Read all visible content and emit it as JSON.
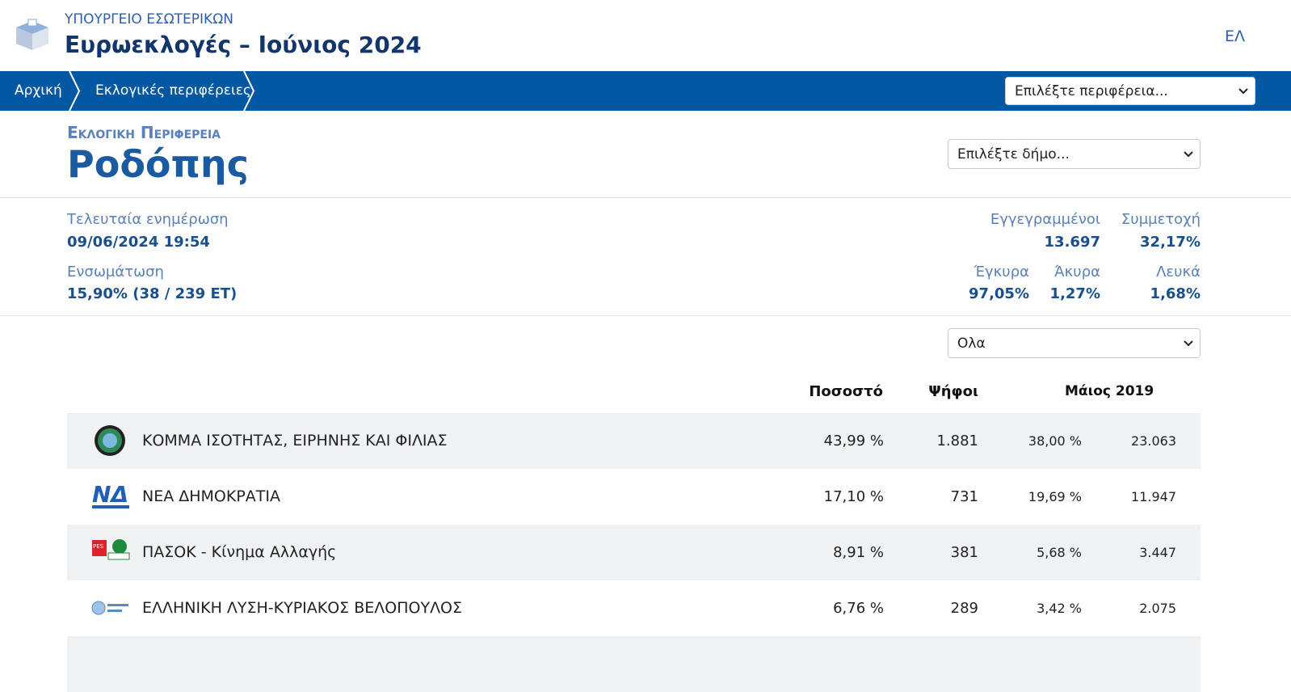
{
  "header": {
    "ministry": "ΥΠΟΥΡΓΕΙΟ ΕΣΩΤΕΡΙΚΩΝ",
    "title": "Ευρωεκλογές – Ιούνιος 2024",
    "language": "ΕΛ"
  },
  "nav": {
    "breadcrumbs": [
      "Αρχική",
      "Εκλογικές περιφέρειες"
    ],
    "region_select": "Επιλέξτε περιφέρεια..."
  },
  "region": {
    "label": "Εκλογική Περιφέρεια",
    "name": "Ροδόπης",
    "municipality_select": "Επιλέξτε δήμο..."
  },
  "stats": {
    "last_update_label": "Τελευταία ενημέρωση",
    "last_update": "09/06/2024 19:54",
    "incorporation_label": "Ενσωμάτωση",
    "incorporation": "15,90% (38 / 239 ΕΤ)",
    "registered_label": "Εγγεγραμμένοι",
    "registered": "13.697",
    "turnout_label": "Συμμετοχή",
    "turnout": "32,17%",
    "valid_label": "Έγκυρα",
    "valid": "97,05%",
    "invalid_label": "Άκυρα",
    "invalid": "1,27%",
    "blank_label": "Λευκά",
    "blank": "1,68%"
  },
  "filter": "Ολα",
  "table": {
    "headers": [
      "Ποσοστό",
      "Ψήφοι",
      "Μάιος 2019"
    ],
    "rows": [
      [
        "ΚΟΜΜΑ ΙΣΟΤΗΤΑΣ, ΕΙΡΗΝΗΣ ΚΑΙ ΦΙΛΙΑΣ",
        "43,99 %",
        "1.881",
        "38,00 %",
        "23.063"
      ],
      [
        "ΝΕΑ ΔΗΜΟΚΡΑΤΙΑ",
        "17,10 %",
        "731",
        "19,69 %",
        "11.947"
      ],
      [
        "ΠΑΣΟΚ - Κίνημα Αλλαγής",
        "8,91 %",
        "381",
        "5,68 %",
        "3.447"
      ],
      [
        "ΕΛΛΗΝΙΚΗ ΛΥΣΗ-ΚΥΡΙΑΚΟΣ ΒΕΛΟΠΟΥΛΟΣ",
        "6,76 %",
        "289",
        "3,42 %",
        "2.075"
      ]
    ]
  }
}
